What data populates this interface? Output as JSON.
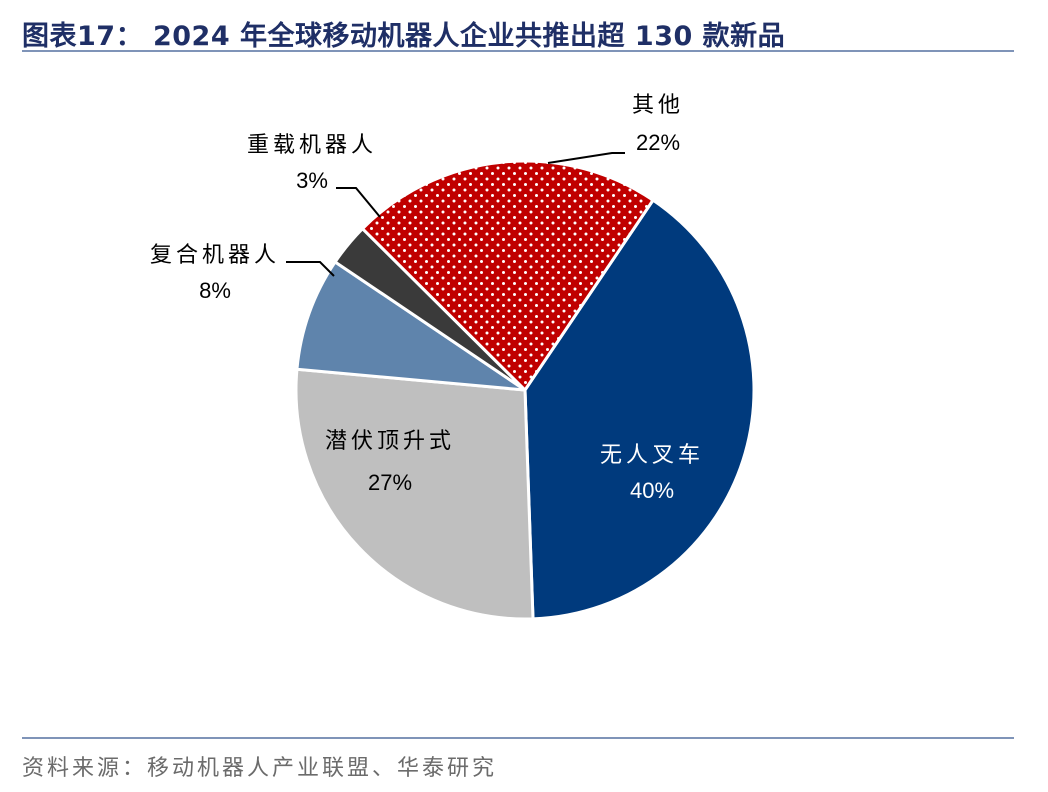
{
  "title": "图表17： 2024 年全球移动机器人企业共推出超 130 款新品",
  "source": "资料来源：移动机器人产业联盟、华泰研究",
  "chart_data": {
    "type": "pie",
    "title": "2024 年全球移动机器人企业共推出超 130 款新品",
    "slices": [
      {
        "name": "无人叉车",
        "value": 40,
        "label": "40%",
        "color": "#003a7d",
        "pattern": "none"
      },
      {
        "name": "潜伏顶升式",
        "value": 27,
        "label": "27%",
        "color": "#bfbfbf",
        "pattern": "none"
      },
      {
        "name": "复合机器人",
        "value": 8,
        "label": "8%",
        "color": "#5f84ac",
        "pattern": "none"
      },
      {
        "name": "重载机器人",
        "value": 3,
        "label": "3%",
        "color": "#3a3a3a",
        "pattern": "none"
      },
      {
        "name": "其他",
        "value": 22,
        "label": "22%",
        "color": "#c00000",
        "pattern": "white-dots"
      }
    ]
  }
}
